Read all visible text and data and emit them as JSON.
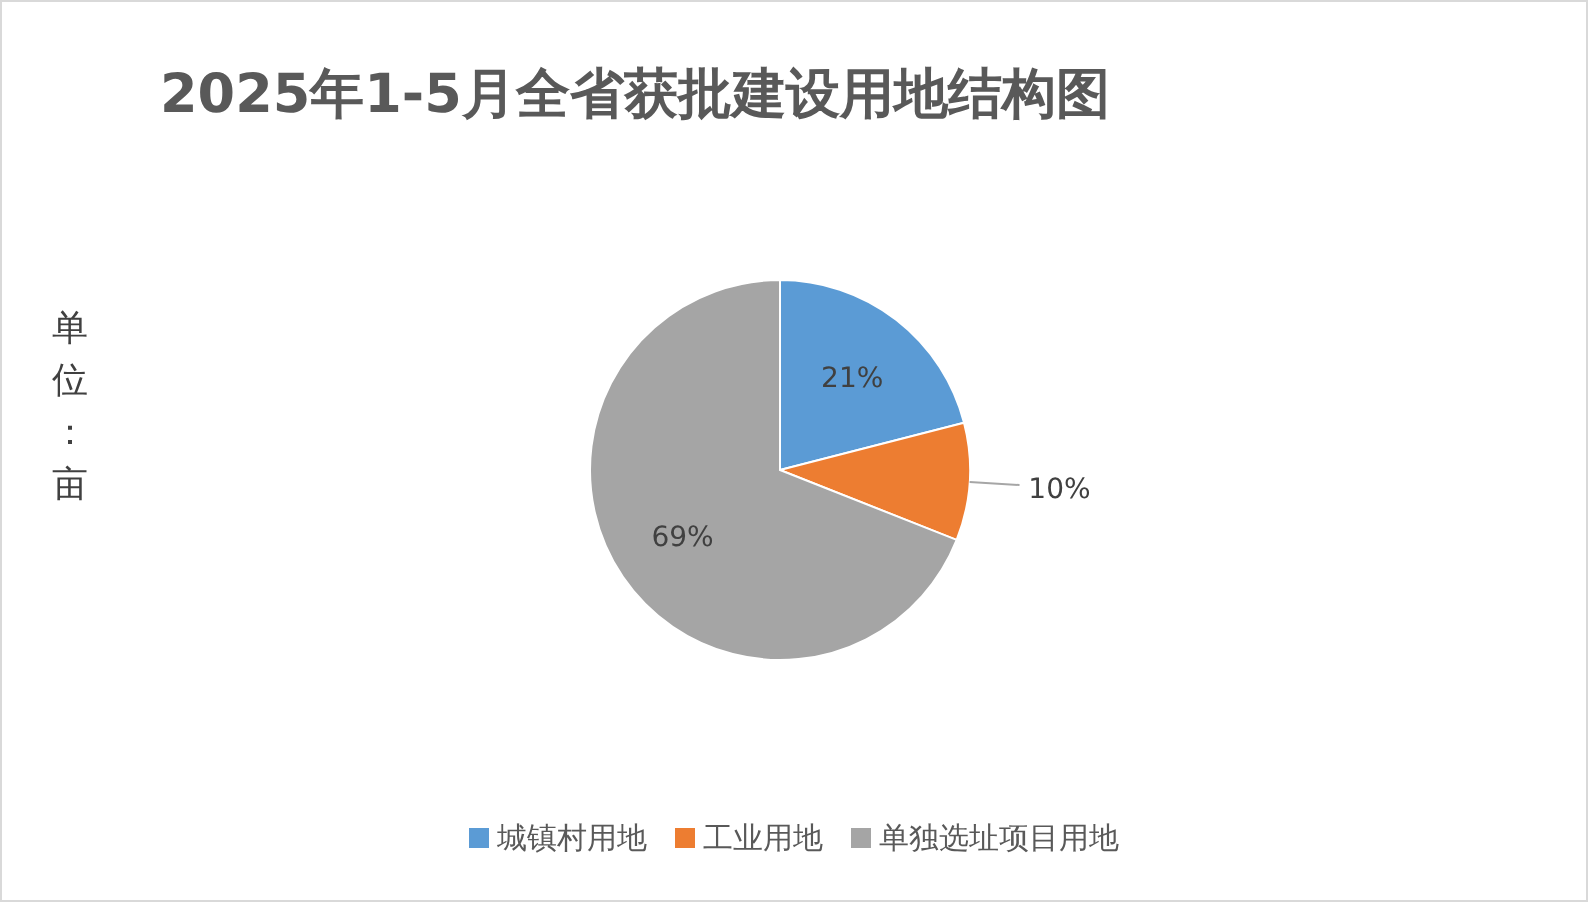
{
  "chart_data": {
    "type": "pie",
    "title": "2025年1-5月全省获批建设用地结构图",
    "ylabel": "单位：亩",
    "categories": [
      "城镇村用地",
      "工业用地",
      "单独选址项目用地"
    ],
    "values": [
      21,
      10,
      69
    ],
    "colors": [
      "#5b9bd5",
      "#ed7d31",
      "#a5a5a5"
    ],
    "value_labels": [
      "21%",
      "10%",
      "69%"
    ],
    "legend": "bottom"
  }
}
